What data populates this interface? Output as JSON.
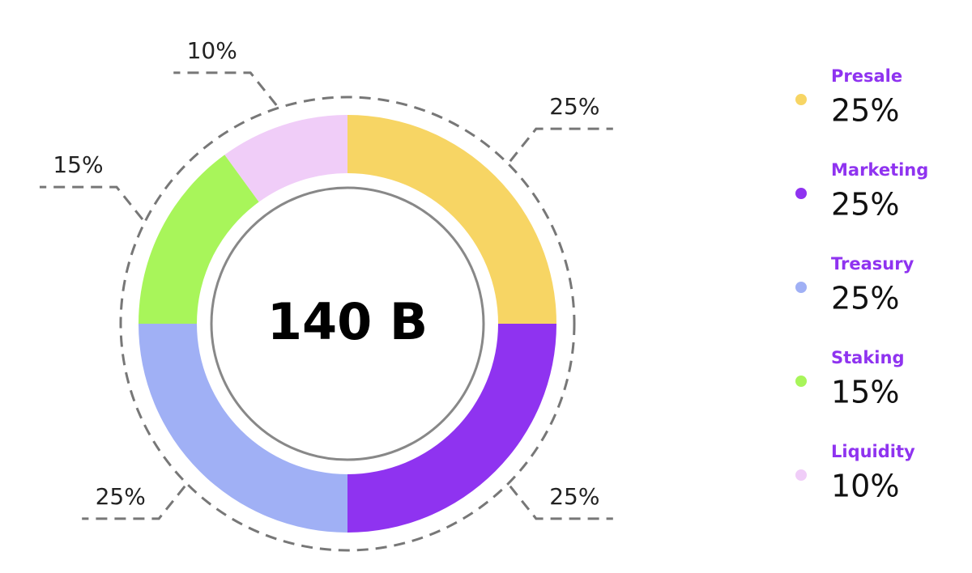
{
  "chart_data": {
    "type": "pie",
    "center_label": "140 B",
    "categories": [
      "Presale",
      "Marketing",
      "Treasury",
      "Staking",
      "Liquidity"
    ],
    "values": [
      25,
      25,
      25,
      15,
      10
    ],
    "value_labels": [
      "25%",
      "25%",
      "25%",
      "15%",
      "10%"
    ],
    "colors": [
      "#f7d564",
      "#8f33f0",
      "#a0b0f5",
      "#a8f55a",
      "#f0cdf8"
    ],
    "legend": "right"
  }
}
